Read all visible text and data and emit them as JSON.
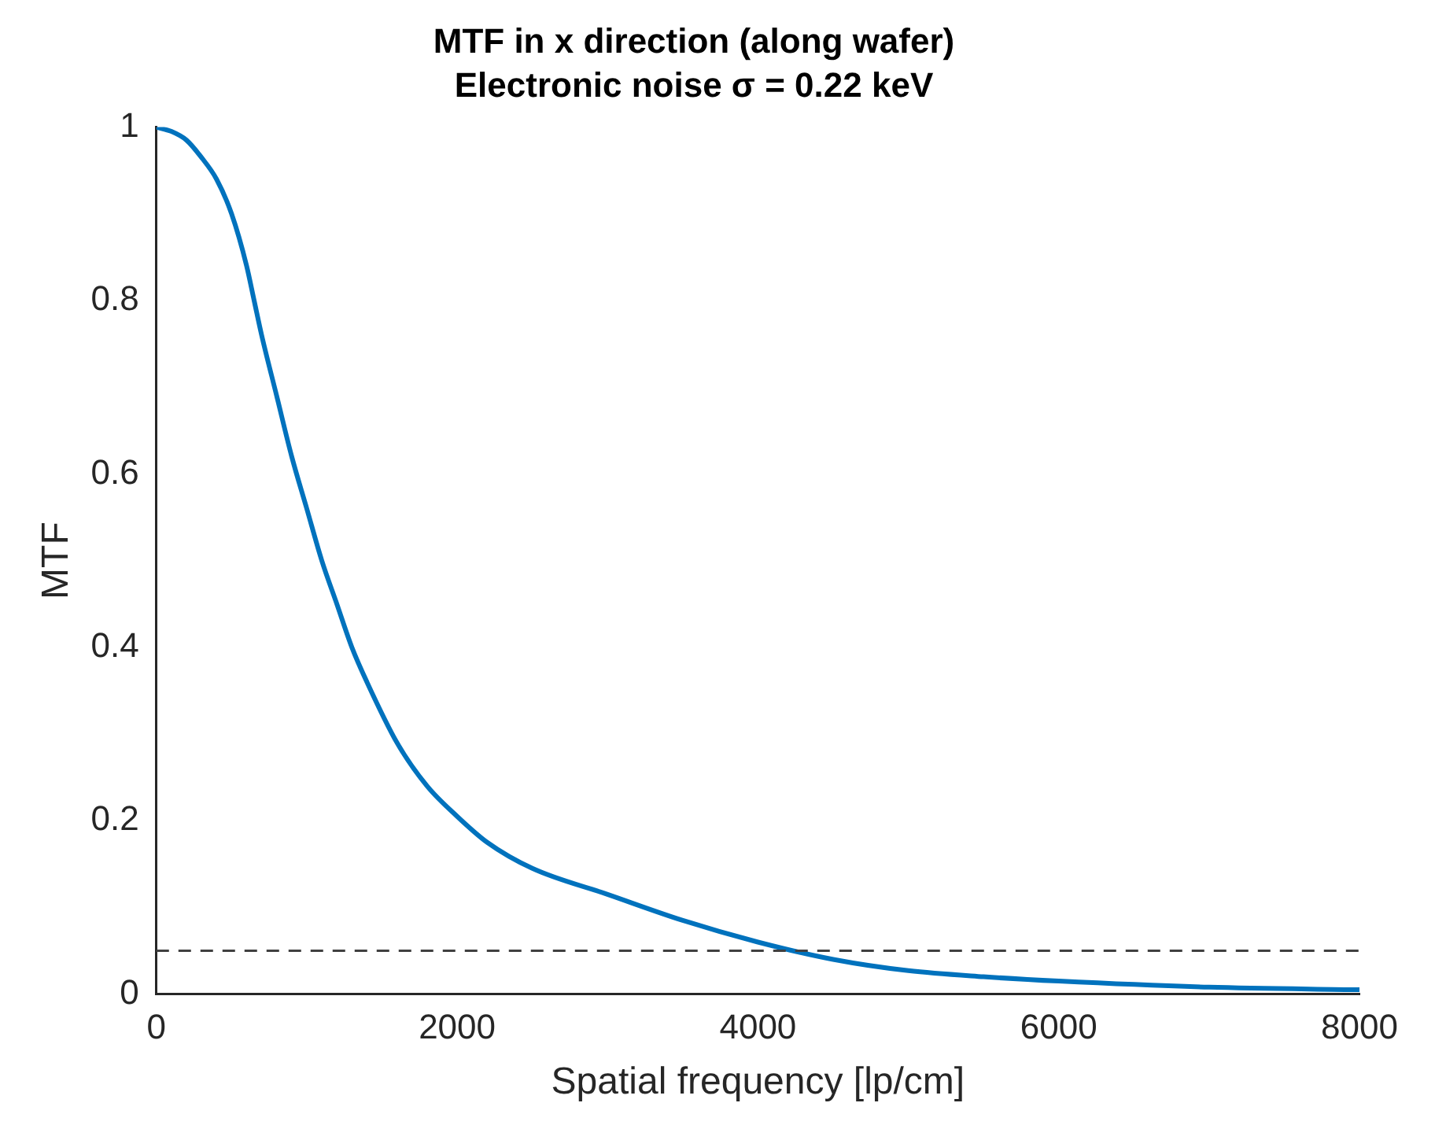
{
  "chart_data": {
    "type": "line",
    "title": "MTF in x direction (along wafer)",
    "subtitle": "Electronic noise σ = 0.22 keV",
    "xlabel": "Spatial frequency [lp/cm]",
    "ylabel": "MTF",
    "x": [
      0,
      100,
      200,
      300,
      400,
      500,
      600,
      650,
      700,
      800,
      900,
      1000,
      1100,
      1200,
      1300,
      1400,
      1600,
      1800,
      2000,
      2200,
      2500,
      3000,
      3500,
      4000,
      4500,
      5000,
      5500,
      6000,
      7000,
      8000
    ],
    "series": [
      {
        "color": "#0072bd",
        "values": [
          1,
          0.995,
          0.985,
          0.965,
          0.94,
          0.9,
          0.84,
          0.8,
          0.76,
          0.69,
          0.62,
          0.56,
          0.5,
          0.45,
          0.4,
          0.36,
          0.29,
          0.24,
          0.205,
          0.175,
          0.145,
          0.115,
          0.085,
          0.06,
          0.04,
          0.027,
          0.02,
          0.015,
          0.008,
          0.005
        ]
      }
    ],
    "xlim": [
      0,
      8000
    ],
    "xticks": [
      0,
      2000,
      4000,
      6000,
      8000
    ],
    "ylim": [
      0,
      1
    ],
    "yticks": [
      0,
      0.2,
      0.4,
      0.6,
      0.8,
      1
    ],
    "grid": false,
    "legend": false,
    "marker": "none",
    "line_style": "solid",
    "ref_lines": [
      {
        "axis": "y",
        "value": 0.05,
        "color": "#404040",
        "line_style": "dashed"
      }
    ]
  }
}
